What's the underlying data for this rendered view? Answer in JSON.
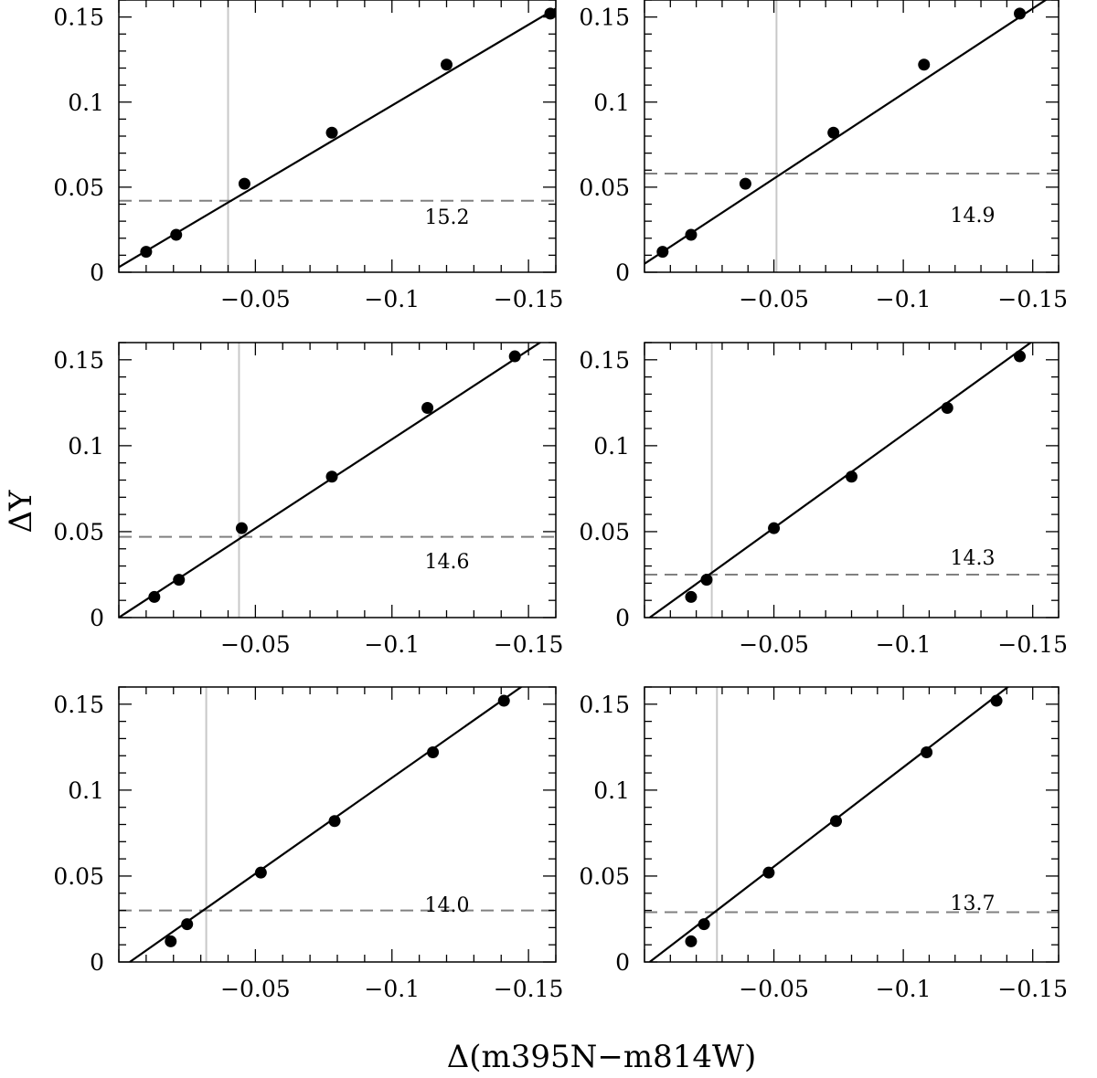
{
  "figure": {
    "ylabel": "ΔY",
    "xlabel": "Δ(m395N−m814W)"
  },
  "colors": {
    "points": "#000000",
    "fit_line": "#000000",
    "vertical_line": "#c8c8c8",
    "dashed_line": "#808080",
    "frame": "#000000"
  },
  "chart_data": [
    {
      "type": "scatter",
      "panel_label": "15.2",
      "x": [
        -0.01,
        -0.021,
        -0.046,
        -0.078,
        -0.12,
        -0.158
      ],
      "y": [
        0.012,
        0.022,
        0.052,
        0.082,
        0.122,
        0.152
      ],
      "fit_line": {
        "x": [
          0.0,
          -0.16
        ],
        "y": [
          0.003,
          0.155
        ]
      },
      "vertical_line_x": -0.04,
      "horizontal_dashed_y": 0.042,
      "xlim": [
        0.0,
        -0.16
      ],
      "ylim": [
        0.0,
        0.16
      ],
      "xticks": [
        "−0.05",
        "−0.1",
        "−0.15"
      ],
      "yticks": [
        "0",
        "0.05",
        "0.1",
        "0.15"
      ]
    },
    {
      "type": "scatter",
      "panel_label": "14.9",
      "x": [
        -0.007,
        -0.018,
        -0.039,
        -0.073,
        -0.108,
        -0.145
      ],
      "y": [
        0.012,
        0.022,
        0.052,
        0.082,
        0.122,
        0.152
      ],
      "fit_line": {
        "x": [
          0.0,
          -0.16
        ],
        "y": [
          0.005,
          0.165
        ]
      },
      "vertical_line_x": -0.051,
      "horizontal_dashed_y": 0.058,
      "xlim": [
        0.0,
        -0.16
      ],
      "ylim": [
        0.0,
        0.16
      ],
      "xticks": [
        "−0.05",
        "−0.1",
        "−0.15"
      ],
      "yticks": [
        "0",
        "0.05",
        "0.1",
        "0.15"
      ]
    },
    {
      "type": "scatter",
      "panel_label": "14.6",
      "x": [
        -0.013,
        -0.022,
        -0.045,
        -0.078,
        -0.113,
        -0.145
      ],
      "y": [
        0.012,
        0.022,
        0.052,
        0.082,
        0.122,
        0.152
      ],
      "fit_line": {
        "x": [
          0.0,
          -0.16
        ],
        "y": [
          0.0,
          0.166
        ]
      },
      "vertical_line_x": -0.044,
      "horizontal_dashed_y": 0.047,
      "xlim": [
        0.0,
        -0.16
      ],
      "ylim": [
        0.0,
        0.16
      ],
      "xticks": [
        "−0.05",
        "−0.1",
        "−0.15"
      ],
      "yticks": [
        "0",
        "0.05",
        "0.1",
        "0.15"
      ]
    },
    {
      "type": "scatter",
      "panel_label": "14.3",
      "x": [
        -0.018,
        -0.024,
        -0.05,
        -0.08,
        -0.117,
        -0.145
      ],
      "y": [
        0.012,
        0.022,
        0.052,
        0.082,
        0.122,
        0.152
      ],
      "fit_line": {
        "x": [
          -0.002,
          -0.152
        ],
        "y": [
          0.0,
          0.163
        ]
      },
      "vertical_line_x": -0.026,
      "horizontal_dashed_y": 0.025,
      "xlim": [
        0.0,
        -0.16
      ],
      "ylim": [
        0.0,
        0.16
      ],
      "xticks": [
        "−0.05",
        "−0.1",
        "−0.15"
      ],
      "yticks": [
        "0",
        "0.05",
        "0.1",
        "0.15"
      ]
    },
    {
      "type": "scatter",
      "panel_label": "14.0",
      "x": [
        -0.019,
        -0.025,
        -0.052,
        -0.079,
        -0.115,
        -0.141
      ],
      "y": [
        0.012,
        0.022,
        0.052,
        0.082,
        0.122,
        0.152
      ],
      "fit_line": {
        "x": [
          -0.004,
          -0.15
        ],
        "y": [
          0.0,
          0.163
        ]
      },
      "vertical_line_x": -0.032,
      "horizontal_dashed_y": 0.03,
      "xlim": [
        0.0,
        -0.16
      ],
      "ylim": [
        0.0,
        0.16
      ],
      "xticks": [
        "−0.05",
        "−0.1",
        "−0.15"
      ],
      "yticks": [
        "0",
        "0.05",
        "0.1",
        "0.15"
      ]
    },
    {
      "type": "scatter",
      "panel_label": "13.7",
      "x": [
        -0.018,
        -0.023,
        -0.048,
        -0.074,
        -0.109,
        -0.136
      ],
      "y": [
        0.012,
        0.022,
        0.052,
        0.082,
        0.122,
        0.152
      ],
      "fit_line": {
        "x": [
          -0.002,
          -0.143
        ],
        "y": [
          0.0,
          0.163
        ]
      },
      "vertical_line_x": -0.028,
      "horizontal_dashed_y": 0.029,
      "xlim": [
        0.0,
        -0.16
      ],
      "ylim": [
        0.0,
        0.16
      ],
      "xticks": [
        "−0.05",
        "−0.1",
        "−0.15"
      ],
      "yticks": [
        "0",
        "0.05",
        "0.1",
        "0.15"
      ]
    }
  ]
}
